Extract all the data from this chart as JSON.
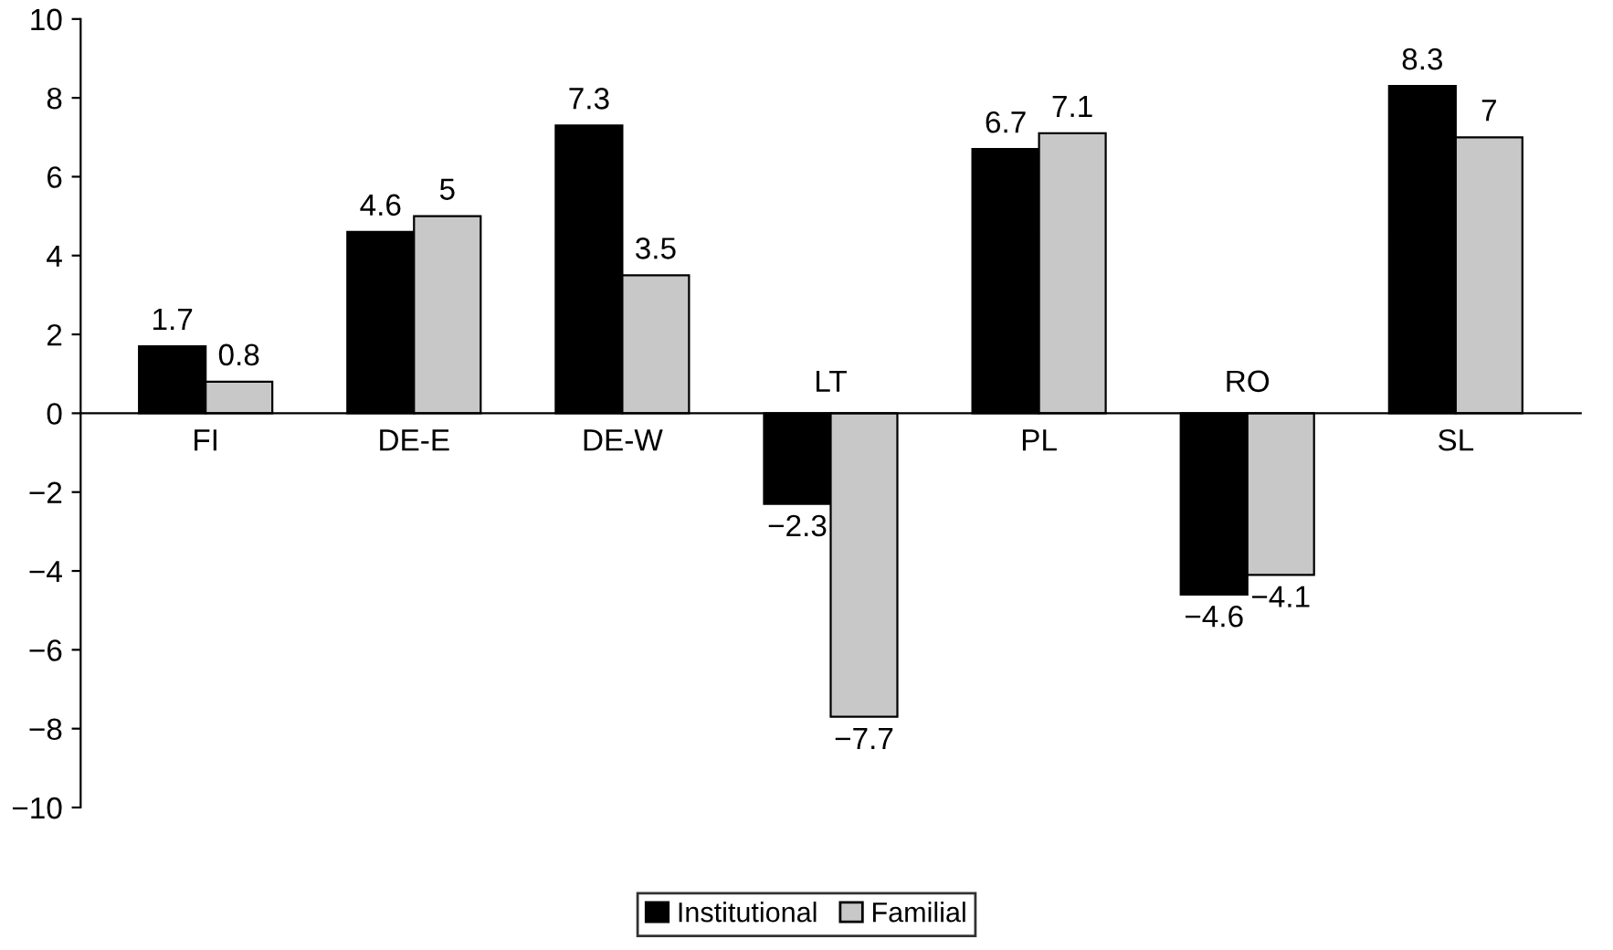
{
  "chart_data": {
    "type": "bar",
    "categories": [
      "FI",
      "DE-E",
      "DE-W",
      "LT",
      "PL",
      "RO",
      "SL"
    ],
    "series": [
      {
        "name": "Institutional",
        "color": "#000000",
        "values": [
          1.7,
          4.6,
          7.3,
          -2.3,
          6.7,
          -4.6,
          8.3
        ],
        "value_labels": [
          "1.7",
          "4.6",
          "7.3",
          "−2.3",
          "6.7",
          "−4.6",
          "8.3"
        ]
      },
      {
        "name": "Familial",
        "color": "#c8c8c8",
        "values": [
          0.8,
          5,
          3.5,
          -7.7,
          7.1,
          -4.1,
          7
        ],
        "value_labels": [
          "0.8",
          "5",
          "3.5",
          "−7.7",
          "7.1",
          "−4.1",
          "7"
        ]
      }
    ],
    "ylim": [
      -10,
      10
    ],
    "yticks": [
      {
        "value": -10,
        "label": "−10"
      },
      {
        "value": -8,
        "label": "−8"
      },
      {
        "value": -6,
        "label": "−6"
      },
      {
        "value": -4,
        "label": "−4"
      },
      {
        "value": -2,
        "label": "−2"
      },
      0,
      2,
      4,
      6,
      8,
      10
    ],
    "grid": false,
    "legend": "bottom"
  }
}
